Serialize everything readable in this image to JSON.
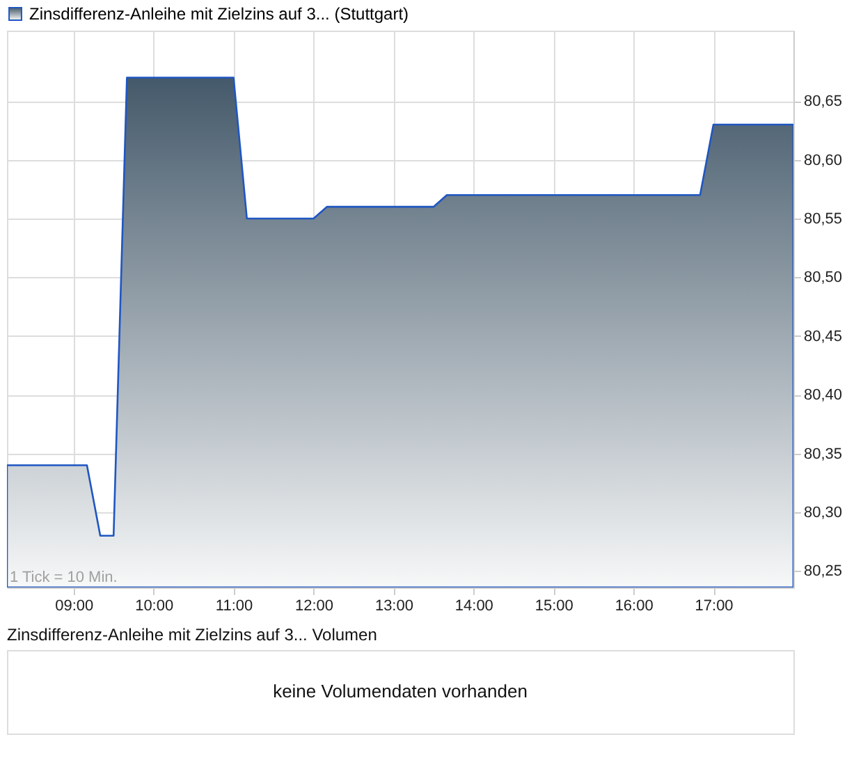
{
  "chart_data": [
    {
      "type": "area",
      "x": [
        8.1667,
        9.1667,
        9.3333,
        9.5,
        9.6667,
        11.0,
        11.1667,
        12.0,
        12.1667,
        13.5,
        13.6667,
        16.8333,
        17.0,
        18.0
      ],
      "series": [
        {
          "name": "Zinsdifferenz-Anleihe mit Zielzins auf 3... (Stuttgart)",
          "color": "#1f56c2",
          "values": [
            80.34,
            80.34,
            80.28,
            80.28,
            80.67,
            80.67,
            80.55,
            80.55,
            80.56,
            80.56,
            80.57,
            80.57,
            80.63,
            80.63
          ]
        }
      ],
      "xlim": [
        8.1667,
        18.0
      ],
      "xticks": [
        {
          "value": 9,
          "label": "09:00"
        },
        {
          "value": 10,
          "label": "10:00"
        },
        {
          "value": 11,
          "label": "11:00"
        },
        {
          "value": 12,
          "label": "12:00"
        },
        {
          "value": 13,
          "label": "13:00"
        },
        {
          "value": 14,
          "label": "14:00"
        },
        {
          "value": 15,
          "label": "15:00"
        },
        {
          "value": 16,
          "label": "16:00"
        },
        {
          "value": 17,
          "label": "17:00"
        }
      ],
      "ylim": [
        80.236,
        80.71
      ],
      "yticks": [
        {
          "value": 80.25,
          "label": "80,25"
        },
        {
          "value": 80.3,
          "label": "80,30"
        },
        {
          "value": 80.35,
          "label": "80,35"
        },
        {
          "value": 80.4,
          "label": "80,40"
        },
        {
          "value": 80.45,
          "label": "80,45"
        },
        {
          "value": 80.5,
          "label": "80,50"
        },
        {
          "value": 80.55,
          "label": "80,55"
        },
        {
          "value": 80.6,
          "label": "80,60"
        },
        {
          "value": 80.65,
          "label": "80,65"
        }
      ],
      "grid": true,
      "legend": "top left",
      "annotations": [
        "1 Tick = 10 Min."
      ]
    },
    {
      "type": "other",
      "title": "Zinsdifferenz-Anleihe mit Zielzins auf 3... Volumen",
      "annotations": [
        "keine Volumendaten vorhanden"
      ]
    }
  ]
}
